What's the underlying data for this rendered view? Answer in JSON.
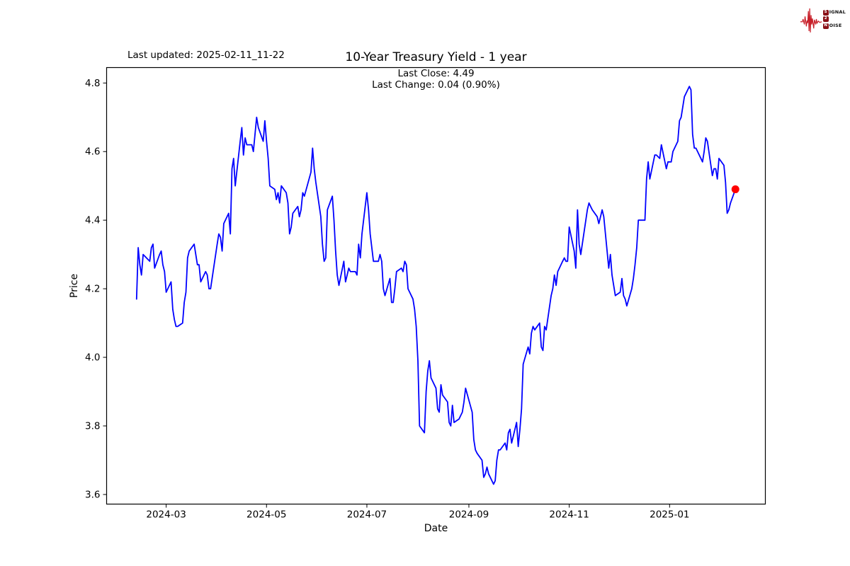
{
  "header": {
    "last_updated": "Last updated: 2025-02-11_11-22",
    "logo": {
      "wave_color": "#c8202a",
      "tile_color": "#8a1118",
      "rows": [
        {
          "tile": "S",
          "rest": "IGNAL"
        },
        {
          "tile": "2",
          "rest": ""
        },
        {
          "tile": "N",
          "rest": "OISE"
        }
      ]
    }
  },
  "chart_data": {
    "type": "line",
    "title": "10-Year Treasury Yield - 1 year",
    "subtitle_line1": "Last Close: 4.49",
    "subtitle_line2": "Last Change: 0.04 (0.90%)",
    "last_close": 4.49,
    "last_change": "0.04 (0.90%)",
    "xlabel": "Date",
    "ylabel": "Price",
    "line_color": "#0000ff",
    "marker_color": "#ff0000",
    "axis_color": "#000000",
    "grid": false,
    "legend": "none",
    "ylim": [
      3.572,
      4.845
    ],
    "y_ticks": [
      {
        "v": 3.6,
        "label": "3.6"
      },
      {
        "v": 3.8,
        "label": "3.8"
      },
      {
        "v": 4.0,
        "label": "4.0"
      },
      {
        "v": 4.2,
        "label": "4.2"
      },
      {
        "v": 4.4,
        "label": "4.4"
      },
      {
        "v": 4.6,
        "label": "4.6"
      },
      {
        "v": 4.8,
        "label": "4.8"
      }
    ],
    "x_ticks": [
      {
        "date": "2024-03-01",
        "label": "2024-03"
      },
      {
        "date": "2024-05-01",
        "label": "2024-05"
      },
      {
        "date": "2024-07-01",
        "label": "2024-07"
      },
      {
        "date": "2024-09-01",
        "label": "2024-09"
      },
      {
        "date": "2024-11-01",
        "label": "2024-11"
      },
      {
        "date": "2025-01-01",
        "label": "2025-01"
      }
    ],
    "points": [
      [
        "2024-02-12",
        4.17
      ],
      [
        "2024-02-13",
        4.32
      ],
      [
        "2024-02-14",
        4.27
      ],
      [
        "2024-02-15",
        4.24
      ],
      [
        "2024-02-16",
        4.3
      ],
      [
        "2024-02-20",
        4.28
      ],
      [
        "2024-02-21",
        4.32
      ],
      [
        "2024-02-22",
        4.33
      ],
      [
        "2024-02-23",
        4.26
      ],
      [
        "2024-02-26",
        4.3
      ],
      [
        "2024-02-27",
        4.31
      ],
      [
        "2024-02-28",
        4.27
      ],
      [
        "2024-02-29",
        4.25
      ],
      [
        "2024-03-01",
        4.19
      ],
      [
        "2024-03-04",
        4.22
      ],
      [
        "2024-03-05",
        4.14
      ],
      [
        "2024-03-06",
        4.11
      ],
      [
        "2024-03-07",
        4.09
      ],
      [
        "2024-03-08",
        4.09
      ],
      [
        "2024-03-11",
        4.1
      ],
      [
        "2024-03-12",
        4.16
      ],
      [
        "2024-03-13",
        4.19
      ],
      [
        "2024-03-14",
        4.29
      ],
      [
        "2024-03-15",
        4.31
      ],
      [
        "2024-03-18",
        4.33
      ],
      [
        "2024-03-19",
        4.3
      ],
      [
        "2024-03-20",
        4.27
      ],
      [
        "2024-03-21",
        4.27
      ],
      [
        "2024-03-22",
        4.22
      ],
      [
        "2024-03-25",
        4.25
      ],
      [
        "2024-03-26",
        4.24
      ],
      [
        "2024-03-27",
        4.2
      ],
      [
        "2024-03-28",
        4.2
      ],
      [
        "2024-04-01",
        4.33
      ],
      [
        "2024-04-02",
        4.36
      ],
      [
        "2024-04-03",
        4.35
      ],
      [
        "2024-04-04",
        4.31
      ],
      [
        "2024-04-05",
        4.39
      ],
      [
        "2024-04-08",
        4.42
      ],
      [
        "2024-04-09",
        4.36
      ],
      [
        "2024-04-10",
        4.55
      ],
      [
        "2024-04-11",
        4.58
      ],
      [
        "2024-04-12",
        4.5
      ],
      [
        "2024-04-15",
        4.63
      ],
      [
        "2024-04-16",
        4.67
      ],
      [
        "2024-04-17",
        4.59
      ],
      [
        "2024-04-18",
        4.64
      ],
      [
        "2024-04-19",
        4.62
      ],
      [
        "2024-04-22",
        4.62
      ],
      [
        "2024-04-23",
        4.6
      ],
      [
        "2024-04-24",
        4.65
      ],
      [
        "2024-04-25",
        4.7
      ],
      [
        "2024-04-26",
        4.67
      ],
      [
        "2024-04-29",
        4.63
      ],
      [
        "2024-04-30",
        4.69
      ],
      [
        "2024-05-01",
        4.63
      ],
      [
        "2024-05-02",
        4.58
      ],
      [
        "2024-05-03",
        4.5
      ],
      [
        "2024-05-06",
        4.49
      ],
      [
        "2024-05-07",
        4.46
      ],
      [
        "2024-05-08",
        4.48
      ],
      [
        "2024-05-09",
        4.45
      ],
      [
        "2024-05-10",
        4.5
      ],
      [
        "2024-05-13",
        4.48
      ],
      [
        "2024-05-14",
        4.45
      ],
      [
        "2024-05-15",
        4.36
      ],
      [
        "2024-05-16",
        4.38
      ],
      [
        "2024-05-17",
        4.42
      ],
      [
        "2024-05-20",
        4.44
      ],
      [
        "2024-05-21",
        4.41
      ],
      [
        "2024-05-22",
        4.43
      ],
      [
        "2024-05-23",
        4.48
      ],
      [
        "2024-05-24",
        4.47
      ],
      [
        "2024-05-28",
        4.54
      ],
      [
        "2024-05-29",
        4.61
      ],
      [
        "2024-05-30",
        4.55
      ],
      [
        "2024-05-31",
        4.51
      ],
      [
        "2024-06-03",
        4.41
      ],
      [
        "2024-06-04",
        4.33
      ],
      [
        "2024-06-05",
        4.28
      ],
      [
        "2024-06-06",
        4.29
      ],
      [
        "2024-06-07",
        4.43
      ],
      [
        "2024-06-10",
        4.47
      ],
      [
        "2024-06-11",
        4.4
      ],
      [
        "2024-06-12",
        4.31
      ],
      [
        "2024-06-13",
        4.24
      ],
      [
        "2024-06-14",
        4.21
      ],
      [
        "2024-06-17",
        4.28
      ],
      [
        "2024-06-18",
        4.22
      ],
      [
        "2024-06-20",
        4.26
      ],
      [
        "2024-06-21",
        4.25
      ],
      [
        "2024-06-24",
        4.25
      ],
      [
        "2024-06-25",
        4.24
      ],
      [
        "2024-06-26",
        4.33
      ],
      [
        "2024-06-27",
        4.29
      ],
      [
        "2024-06-28",
        4.36
      ],
      [
        "2024-07-01",
        4.48
      ],
      [
        "2024-07-02",
        4.43
      ],
      [
        "2024-07-03",
        4.36
      ],
      [
        "2024-07-05",
        4.28
      ],
      [
        "2024-07-08",
        4.28
      ],
      [
        "2024-07-09",
        4.3
      ],
      [
        "2024-07-10",
        4.28
      ],
      [
        "2024-07-11",
        4.2
      ],
      [
        "2024-07-12",
        4.18
      ],
      [
        "2024-07-15",
        4.23
      ],
      [
        "2024-07-16",
        4.16
      ],
      [
        "2024-07-17",
        4.16
      ],
      [
        "2024-07-18",
        4.2
      ],
      [
        "2024-07-19",
        4.25
      ],
      [
        "2024-07-22",
        4.26
      ],
      [
        "2024-07-23",
        4.25
      ],
      [
        "2024-07-24",
        4.28
      ],
      [
        "2024-07-25",
        4.27
      ],
      [
        "2024-07-26",
        4.2
      ],
      [
        "2024-07-29",
        4.17
      ],
      [
        "2024-07-30",
        4.14
      ],
      [
        "2024-07-31",
        4.09
      ],
      [
        "2024-08-01",
        3.99
      ],
      [
        "2024-08-02",
        3.8
      ],
      [
        "2024-08-05",
        3.78
      ],
      [
        "2024-08-06",
        3.9
      ],
      [
        "2024-08-07",
        3.96
      ],
      [
        "2024-08-08",
        3.99
      ],
      [
        "2024-08-09",
        3.94
      ],
      [
        "2024-08-12",
        3.91
      ],
      [
        "2024-08-13",
        3.85
      ],
      [
        "2024-08-14",
        3.84
      ],
      [
        "2024-08-15",
        3.92
      ],
      [
        "2024-08-16",
        3.89
      ],
      [
        "2024-08-19",
        3.87
      ],
      [
        "2024-08-20",
        3.81
      ],
      [
        "2024-08-21",
        3.8
      ],
      [
        "2024-08-22",
        3.86
      ],
      [
        "2024-08-23",
        3.81
      ],
      [
        "2024-08-26",
        3.82
      ],
      [
        "2024-08-27",
        3.83
      ],
      [
        "2024-08-28",
        3.84
      ],
      [
        "2024-08-29",
        3.87
      ],
      [
        "2024-08-30",
        3.91
      ],
      [
        "2024-09-03",
        3.84
      ],
      [
        "2024-09-04",
        3.76
      ],
      [
        "2024-09-05",
        3.73
      ],
      [
        "2024-09-06",
        3.72
      ],
      [
        "2024-09-09",
        3.7
      ],
      [
        "2024-09-10",
        3.65
      ],
      [
        "2024-09-11",
        3.66
      ],
      [
        "2024-09-12",
        3.68
      ],
      [
        "2024-09-13",
        3.66
      ],
      [
        "2024-09-16",
        3.63
      ],
      [
        "2024-09-17",
        3.64
      ],
      [
        "2024-09-18",
        3.7
      ],
      [
        "2024-09-19",
        3.73
      ],
      [
        "2024-09-20",
        3.73
      ],
      [
        "2024-09-23",
        3.75
      ],
      [
        "2024-09-24",
        3.73
      ],
      [
        "2024-09-25",
        3.78
      ],
      [
        "2024-09-26",
        3.79
      ],
      [
        "2024-09-27",
        3.75
      ],
      [
        "2024-09-30",
        3.81
      ],
      [
        "2024-10-01",
        3.74
      ],
      [
        "2024-10-02",
        3.79
      ],
      [
        "2024-10-03",
        3.85
      ],
      [
        "2024-10-04",
        3.98
      ],
      [
        "2024-10-07",
        4.03
      ],
      [
        "2024-10-08",
        4.01
      ],
      [
        "2024-10-09",
        4.07
      ],
      [
        "2024-10-10",
        4.09
      ],
      [
        "2024-10-11",
        4.08
      ],
      [
        "2024-10-14",
        4.1
      ],
      [
        "2024-10-15",
        4.03
      ],
      [
        "2024-10-16",
        4.02
      ],
      [
        "2024-10-17",
        4.09
      ],
      [
        "2024-10-18",
        4.08
      ],
      [
        "2024-10-21",
        4.18
      ],
      [
        "2024-10-22",
        4.2
      ],
      [
        "2024-10-23",
        4.24
      ],
      [
        "2024-10-24",
        4.21
      ],
      [
        "2024-10-25",
        4.25
      ],
      [
        "2024-10-28",
        4.28
      ],
      [
        "2024-10-29",
        4.29
      ],
      [
        "2024-10-30",
        4.28
      ],
      [
        "2024-10-31",
        4.28
      ],
      [
        "2024-11-01",
        4.38
      ],
      [
        "2024-11-04",
        4.31
      ],
      [
        "2024-11-05",
        4.26
      ],
      [
        "2024-11-06",
        4.43
      ],
      [
        "2024-11-07",
        4.33
      ],
      [
        "2024-11-08",
        4.3
      ],
      [
        "2024-11-12",
        4.43
      ],
      [
        "2024-11-13",
        4.45
      ],
      [
        "2024-11-14",
        4.44
      ],
      [
        "2024-11-15",
        4.43
      ],
      [
        "2024-11-18",
        4.41
      ],
      [
        "2024-11-19",
        4.39
      ],
      [
        "2024-11-20",
        4.41
      ],
      [
        "2024-11-21",
        4.43
      ],
      [
        "2024-11-22",
        4.41
      ],
      [
        "2024-11-25",
        4.26
      ],
      [
        "2024-11-26",
        4.3
      ],
      [
        "2024-11-27",
        4.24
      ],
      [
        "2024-11-29",
        4.18
      ],
      [
        "2024-12-02",
        4.19
      ],
      [
        "2024-12-03",
        4.23
      ],
      [
        "2024-12-04",
        4.18
      ],
      [
        "2024-12-05",
        4.17
      ],
      [
        "2024-12-06",
        4.15
      ],
      [
        "2024-12-09",
        4.2
      ],
      [
        "2024-12-10",
        4.23
      ],
      [
        "2024-12-11",
        4.27
      ],
      [
        "2024-12-12",
        4.32
      ],
      [
        "2024-12-13",
        4.4
      ],
      [
        "2024-12-16",
        4.4
      ],
      [
        "2024-12-17",
        4.4
      ],
      [
        "2024-12-18",
        4.52
      ],
      [
        "2024-12-19",
        4.57
      ],
      [
        "2024-12-20",
        4.52
      ],
      [
        "2024-12-23",
        4.59
      ],
      [
        "2024-12-24",
        4.59
      ],
      [
        "2024-12-26",
        4.58
      ],
      [
        "2024-12-27",
        4.62
      ],
      [
        "2024-12-30",
        4.55
      ],
      [
        "2024-12-31",
        4.57
      ],
      [
        "2025-01-02",
        4.57
      ],
      [
        "2025-01-03",
        4.6
      ],
      [
        "2025-01-06",
        4.63
      ],
      [
        "2025-01-07",
        4.69
      ],
      [
        "2025-01-08",
        4.7
      ],
      [
        "2025-01-10",
        4.76
      ],
      [
        "2025-01-13",
        4.79
      ],
      [
        "2025-01-14",
        4.78
      ],
      [
        "2025-01-15",
        4.65
      ],
      [
        "2025-01-16",
        4.61
      ],
      [
        "2025-01-17",
        4.61
      ],
      [
        "2025-01-21",
        4.57
      ],
      [
        "2025-01-22",
        4.6
      ],
      [
        "2025-01-23",
        4.64
      ],
      [
        "2025-01-24",
        4.63
      ],
      [
        "2025-01-27",
        4.53
      ],
      [
        "2025-01-28",
        4.55
      ],
      [
        "2025-01-29",
        4.55
      ],
      [
        "2025-01-30",
        4.52
      ],
      [
        "2025-01-31",
        4.58
      ],
      [
        "2025-02-03",
        4.56
      ],
      [
        "2025-02-04",
        4.51
      ],
      [
        "2025-02-05",
        4.42
      ],
      [
        "2025-02-06",
        4.43
      ],
      [
        "2025-02-07",
        4.45
      ],
      [
        "2025-02-10",
        4.49
      ]
    ]
  }
}
